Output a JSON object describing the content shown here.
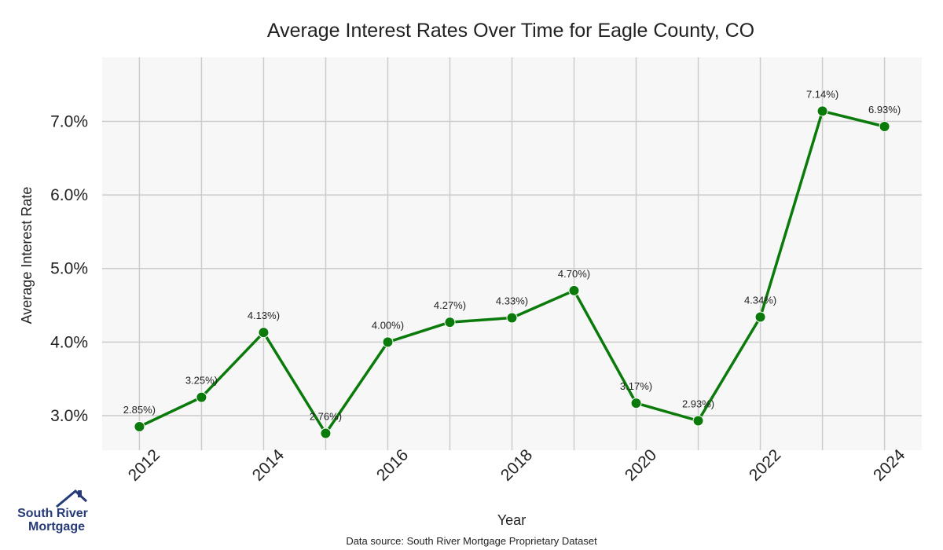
{
  "chart_data": {
    "type": "line",
    "title": "Average Interest Rates Over Time for Eagle County, CO",
    "xlabel": "Year",
    "ylabel": "Average Interest Rate",
    "x": [
      2012,
      2013,
      2014,
      2015,
      2016,
      2017,
      2018,
      2019,
      2020,
      2021,
      2022,
      2023,
      2024
    ],
    "values": [
      2.85,
      3.25,
      4.13,
      2.76,
      4.0,
      4.27,
      4.33,
      4.7,
      3.17,
      2.93,
      4.34,
      7.14,
      6.93
    ],
    "data_labels": [
      "2.85%)",
      "3.25%)",
      "4.13%)",
      "2.76%)",
      "4.00%)",
      "4.27%)",
      "4.33%)",
      "4.70%)",
      "3.17%)",
      "2.93%)",
      "4.34%)",
      "7.14%)",
      "6.93%)"
    ],
    "x_ticks": [
      2012,
      2014,
      2016,
      2018,
      2020,
      2022,
      2024
    ],
    "y_ticks": [
      3.0,
      4.0,
      5.0,
      6.0,
      7.0
    ],
    "y_tick_labels": [
      "3.0%",
      "4.0%",
      "5.0%",
      "6.0%",
      "7.0%"
    ],
    "xlim": [
      2011.4,
      2024.6
    ],
    "ylim": [
      2.53,
      7.87
    ],
    "grid": true,
    "line_color": "#0a7a0a",
    "plot_background": "#f7f7f7",
    "grid_color": "#cccccc"
  },
  "footer": {
    "source_note": "Data source: South River Mortgage Proprietary Dataset"
  },
  "logo": {
    "line1": "South River",
    "line2": "Mortgage",
    "color": "#263a78"
  }
}
